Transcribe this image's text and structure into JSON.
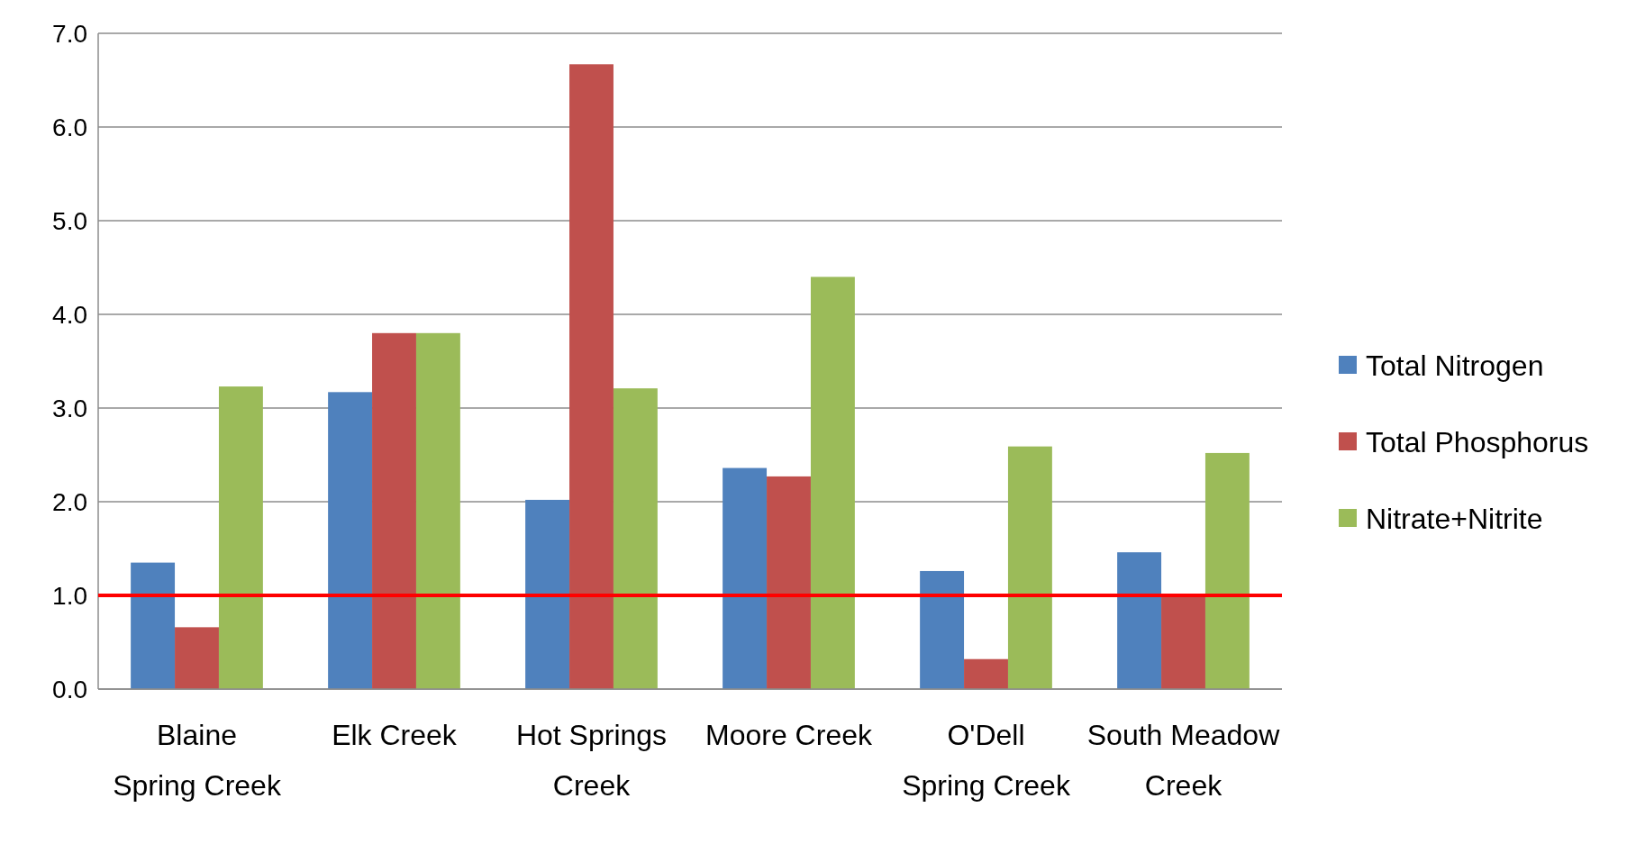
{
  "chart_data": {
    "type": "bar",
    "categories": [
      "Blaine Spring Creek",
      "Elk Creek",
      "Hot Springs Creek",
      "Moore Creek",
      "O'Dell Spring Creek",
      "South Meadow Creek"
    ],
    "series": [
      {
        "name": "Total Nitrogen",
        "color": "#4f81bd",
        "values": [
          1.35,
          3.17,
          2.02,
          2.36,
          1.26,
          1.46
        ]
      },
      {
        "name": "Total Phosphorus",
        "color": "#c0504d",
        "values": [
          0.66,
          3.8,
          6.67,
          2.27,
          0.32,
          1.01
        ]
      },
      {
        "name": "Nitrate+Nitrite",
        "color": "#9bbb59",
        "values": [
          3.23,
          3.8,
          3.21,
          4.4,
          2.59,
          2.52
        ]
      }
    ],
    "ylim": [
      0,
      7
    ],
    "yticks": [
      {
        "value": 0,
        "label": "0.0"
      },
      {
        "value": 1,
        "label": "1.0"
      },
      {
        "value": 2,
        "label": "2.0"
      },
      {
        "value": 3,
        "label": "3.0"
      },
      {
        "value": 4,
        "label": "4.0"
      },
      {
        "value": 5,
        "label": "5.0"
      },
      {
        "value": 6,
        "label": "6.0"
      },
      {
        "value": 7,
        "label": "7.0"
      }
    ],
    "grid": "y",
    "legend": "right",
    "ref_lines": [
      {
        "axis": "y",
        "value": 1,
        "color": "#ff0000"
      }
    ]
  }
}
